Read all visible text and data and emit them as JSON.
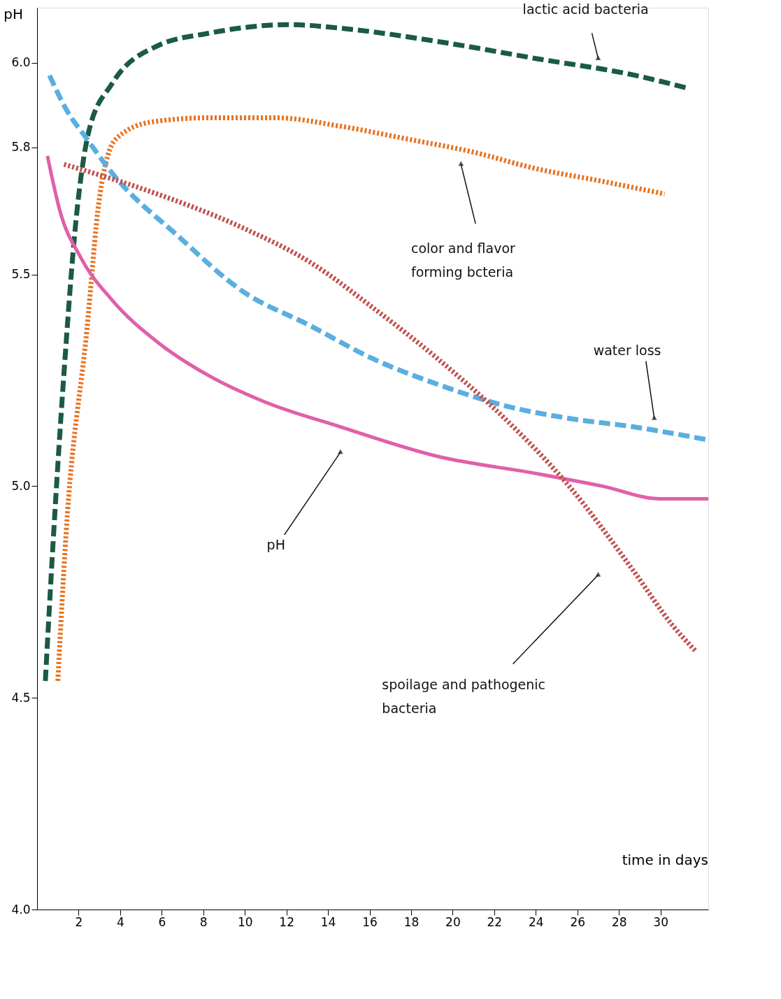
{
  "chart_data": {
    "type": "line",
    "ylabel": "pH",
    "xlabel": "time in days",
    "xlim": [
      0,
      32.3
    ],
    "ylim": [
      4.0,
      6.13
    ],
    "xticks": [
      2,
      4,
      6,
      8,
      10,
      12,
      14,
      16,
      18,
      20,
      22,
      24,
      26,
      28,
      30
    ],
    "yticks": [
      {
        "value": 4.0,
        "label": "4.0"
      },
      {
        "value": 4.5,
        "label": "4.5"
      },
      {
        "value": 5.0,
        "label": "5.0"
      },
      {
        "value": 5.5,
        "label": "5.5"
      },
      {
        "value": 5.8,
        "label": "5.8"
      },
      {
        "value": 6.0,
        "label": "6.0"
      }
    ],
    "grid": false,
    "annotations": [
      {
        "text": "lactic acid bacteria",
        "x": 27.0,
        "y": 6.01
      },
      {
        "text": "color and flavor forming bcteria",
        "x": 20.4,
        "y": 5.76
      },
      {
        "text": "water loss",
        "x": 29.7,
        "y": 5.16
      },
      {
        "text": "pH",
        "x": 14.6,
        "y": 5.08
      },
      {
        "text": "spoilage and pathogenic bacteria",
        "x": 27.0,
        "y": 4.79
      }
    ],
    "series": [
      {
        "color": "#1b5a44",
        "line_style": "dashed",
        "x": [
          0.4,
          0.8,
          1.3,
          1.9,
          2.5,
          3.6,
          5.8,
          8.3,
          12.1,
          14.9,
          19.3,
          24,
          28.8,
          31.3
        ],
        "values": [
          4.54,
          4.89,
          5.27,
          5.64,
          5.84,
          5.95,
          6.04,
          6.07,
          6.09,
          6.08,
          6.05,
          6.01,
          5.97,
          5.94
        ]
      },
      {
        "color": "#e8731f",
        "line_style": "dotted",
        "x": [
          1.0,
          1.4,
          2.4,
          3.0,
          3.8,
          5.5,
          8.3,
          11.5,
          14.6,
          17.8,
          20.9,
          24,
          27.2,
          30.2
        ],
        "values": [
          4.54,
          4.89,
          5.37,
          5.68,
          5.82,
          5.86,
          5.87,
          5.87,
          5.85,
          5.82,
          5.79,
          5.75,
          5.72,
          5.69
        ]
      },
      {
        "color": "#5aaee0",
        "line_style": "dashed",
        "x": [
          0.6,
          1.4,
          2.4,
          3.6,
          6.8,
          9.9,
          13.1,
          16.2,
          19.3,
          22.5,
          25.6,
          28.7,
          32.2
        ],
        "values": [
          5.97,
          5.89,
          5.82,
          5.74,
          5.59,
          5.46,
          5.38,
          5.3,
          5.24,
          5.19,
          5.16,
          5.14,
          5.11
        ]
      },
      {
        "color": "#e060a8",
        "line_style": "solid",
        "x": [
          0.5,
          1.1,
          2.1,
          3.6,
          5.8,
          8.3,
          10.9,
          14.6,
          19.3,
          24,
          27.2,
          30,
          32.3
        ],
        "values": [
          5.78,
          5.65,
          5.54,
          5.44,
          5.34,
          5.26,
          5.2,
          5.14,
          5.07,
          5.03,
          5.0,
          4.97,
          4.97
        ]
      },
      {
        "color": "#c0504d",
        "line_style": "dotted",
        "x": [
          1.3,
          5.2,
          9.9,
          13.1,
          16.2,
          19.3,
          22.5,
          25.6,
          28.7,
          30.6,
          31.7
        ],
        "values": [
          5.76,
          5.7,
          5.61,
          5.53,
          5.42,
          5.3,
          5.16,
          5.0,
          4.8,
          4.67,
          4.61
        ]
      }
    ]
  }
}
